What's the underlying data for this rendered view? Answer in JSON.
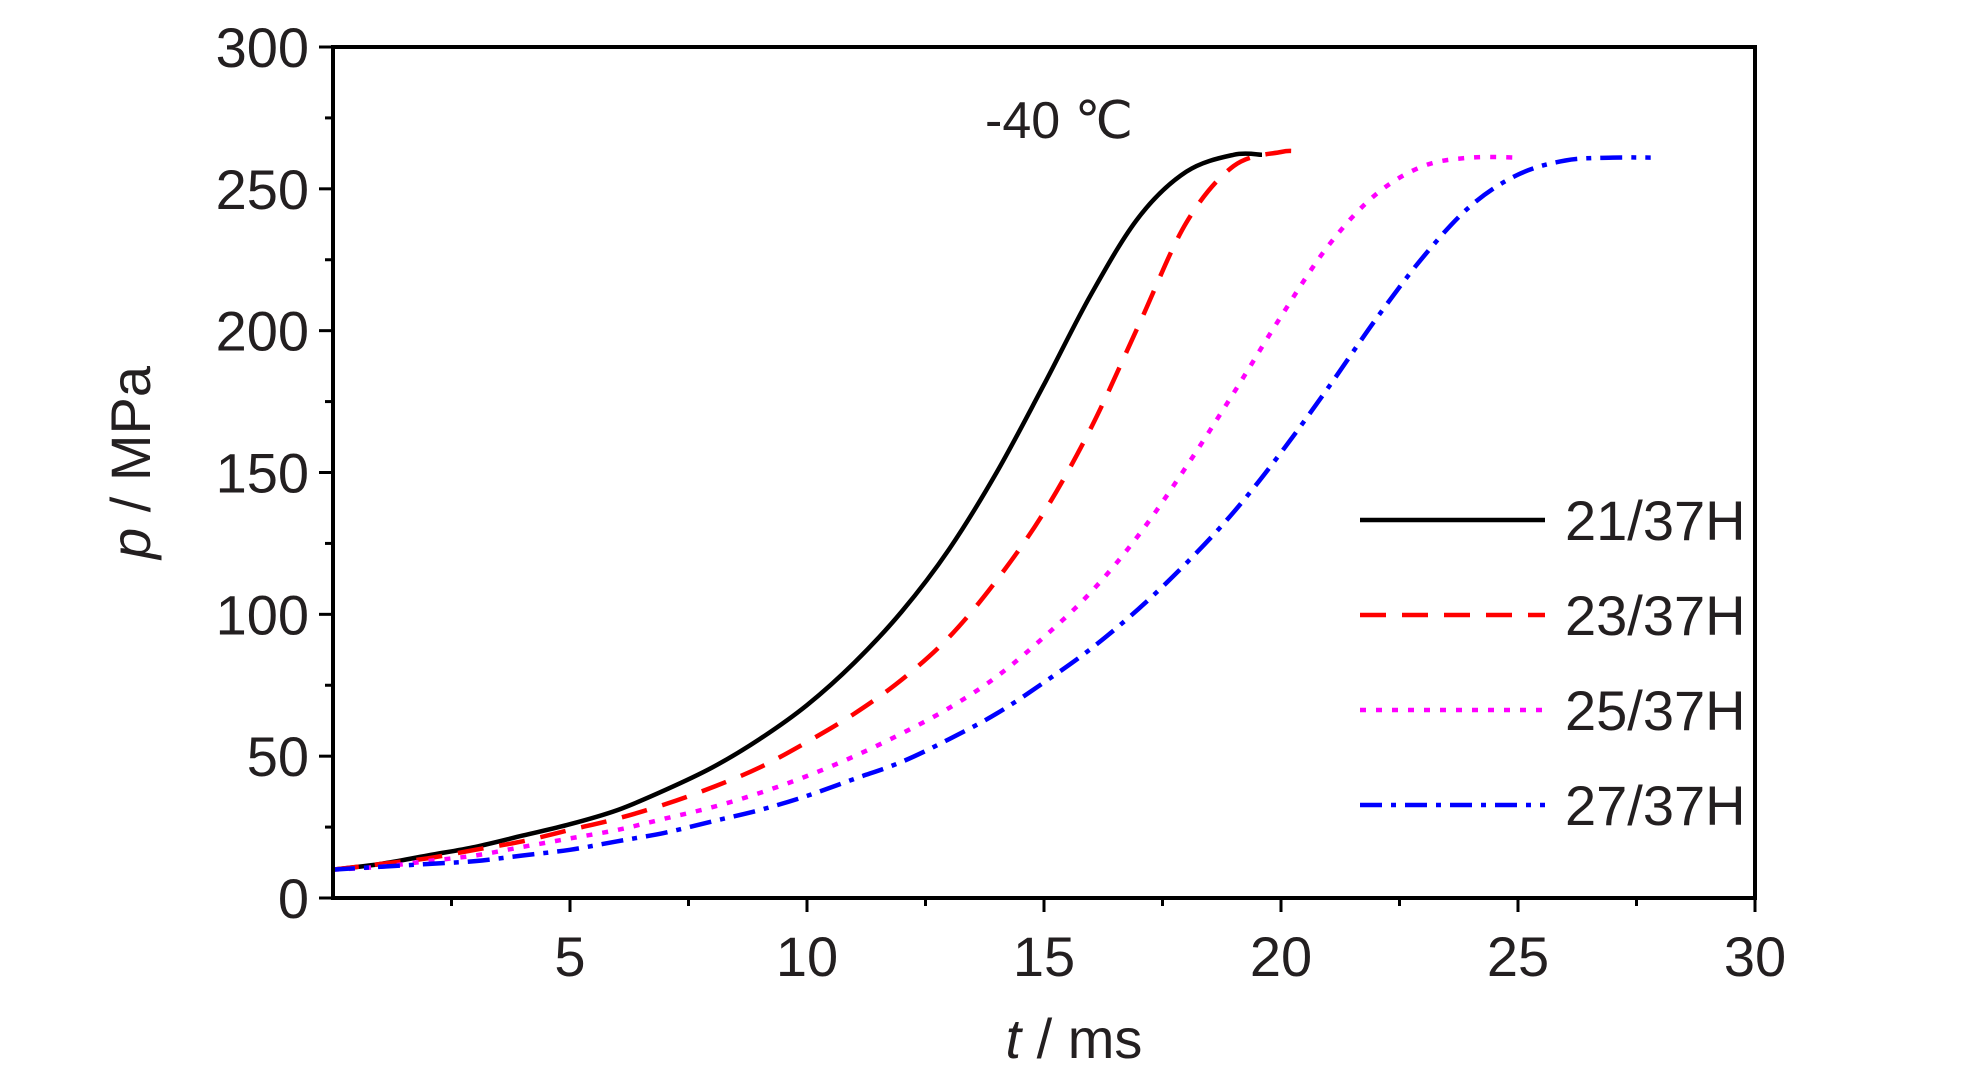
{
  "chart_data": {
    "type": "line",
    "title": "",
    "annotation": "-40 ℃",
    "xlabel": {
      "symbol": "t",
      "unit": " / ms"
    },
    "ylabel": {
      "symbol": "p",
      "unit": " / MPa"
    },
    "xlim": [
      0,
      30
    ],
    "ylim": [
      0,
      300
    ],
    "xticks": [
      5,
      10,
      15,
      20,
      25,
      30
    ],
    "yticks": [
      0,
      50,
      100,
      150,
      200,
      250,
      300
    ],
    "grid": false,
    "legend_position": "right",
    "series": [
      {
        "name": "21/37H",
        "color": "#000000",
        "dash": "solid",
        "x": [
          0,
          1,
          2,
          3,
          4,
          5,
          6,
          7,
          8,
          9,
          10,
          11,
          12,
          13,
          14,
          15,
          16,
          17,
          18,
          19,
          19.6
        ],
        "y": [
          10,
          12,
          15,
          18,
          22,
          26,
          31,
          38,
          46,
          56,
          68,
          83,
          101,
          123,
          150,
          181,
          213,
          240,
          256,
          262,
          262
        ]
      },
      {
        "name": "23/37H",
        "color": "#ff0000",
        "dash": "dashed",
        "x": [
          0,
          1,
          2,
          3,
          4,
          5,
          6,
          7,
          8,
          9,
          10,
          11,
          12,
          13,
          14,
          15,
          16,
          17,
          18,
          19,
          20,
          20.4
        ],
        "y": [
          10,
          12,
          14,
          17,
          20,
          24,
          28,
          33,
          39,
          46,
          55,
          65,
          77,
          92,
          112,
          136,
          166,
          202,
          238,
          258,
          263,
          263
        ]
      },
      {
        "name": "25/37H",
        "color": "#ff00ff",
        "dash": "dotted",
        "x": [
          0,
          1,
          2,
          3,
          4,
          5,
          6,
          7,
          8,
          9,
          10,
          11,
          12,
          13,
          14,
          15,
          16,
          17,
          18,
          19,
          20,
          21,
          22,
          23,
          24,
          25
        ],
        "y": [
          10,
          11,
          13,
          15,
          18,
          21,
          24,
          28,
          32,
          37,
          43,
          50,
          58,
          67,
          78,
          92,
          108,
          128,
          152,
          178,
          205,
          230,
          248,
          258,
          261,
          261
        ]
      },
      {
        "name": "27/37H",
        "color": "#0000ff",
        "dash": "dashdot",
        "x": [
          0,
          1,
          2,
          3,
          4,
          5,
          6,
          7,
          8,
          9,
          10,
          11,
          12,
          13,
          14,
          15,
          16,
          17,
          18,
          19,
          20,
          21,
          22,
          23,
          24,
          25,
          26,
          27,
          27.8
        ],
        "y": [
          10,
          11,
          12,
          13,
          15,
          17,
          20,
          23,
          27,
          31,
          36,
          42,
          48,
          56,
          65,
          76,
          88,
          102,
          118,
          136,
          157,
          180,
          204,
          226,
          244,
          255,
          260,
          261,
          261
        ]
      }
    ]
  }
}
